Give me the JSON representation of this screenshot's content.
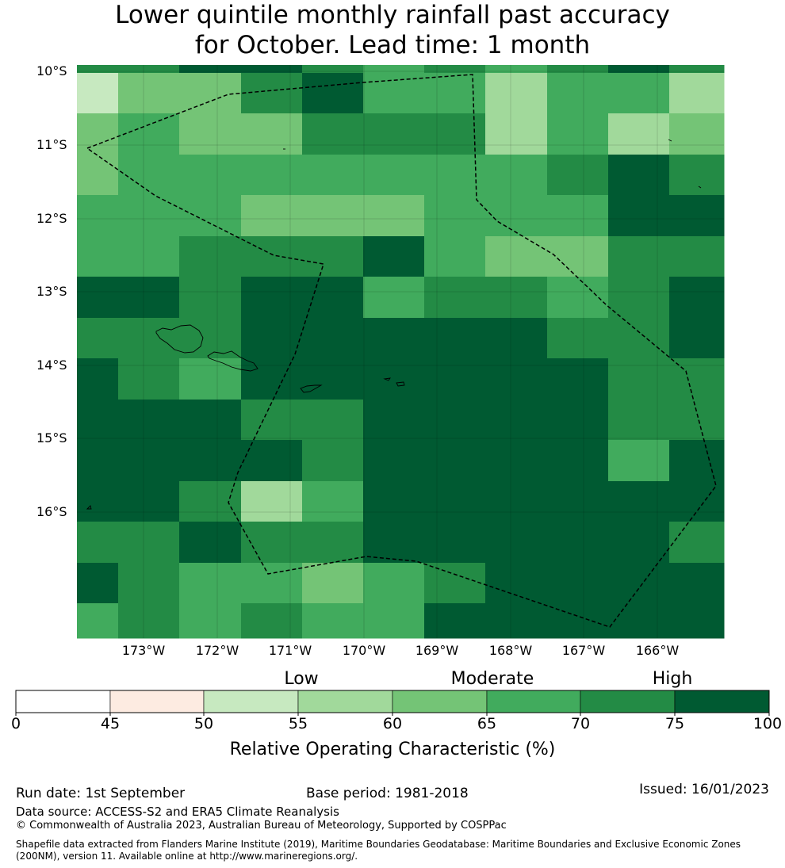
{
  "title": {
    "line1": "Lower quintile monthly rainfall past accuracy",
    "line2": "for October. Lead time: 1 month"
  },
  "map": {
    "lat_labels": [
      "10°S",
      "11°S",
      "12°S",
      "13°S",
      "14°S",
      "15°S",
      "16°S"
    ],
    "lon_labels": [
      "173°W",
      "172°W",
      "171°W",
      "170°W",
      "169°W",
      "168°W",
      "167°W",
      "166°W"
    ],
    "grid_values": [
      [
        72,
        72,
        77,
        77,
        72,
        67,
        72,
        67,
        72,
        77,
        72
      ],
      [
        52,
        62,
        62,
        72,
        77,
        67,
        67,
        57,
        67,
        67,
        57
      ],
      [
        62,
        67,
        62,
        62,
        72,
        72,
        72,
        57,
        67,
        57,
        62
      ],
      [
        62,
        67,
        67,
        67,
        67,
        67,
        67,
        67,
        72,
        77,
        72
      ],
      [
        67,
        67,
        67,
        62,
        62,
        62,
        67,
        67,
        67,
        77,
        77
      ],
      [
        67,
        67,
        72,
        72,
        72,
        77,
        67,
        62,
        62,
        72,
        72
      ],
      [
        77,
        77,
        72,
        77,
        77,
        67,
        72,
        72,
        67,
        72,
        77
      ],
      [
        72,
        72,
        72,
        77,
        77,
        77,
        77,
        77,
        72,
        72,
        77
      ],
      [
        77,
        72,
        67,
        77,
        77,
        77,
        77,
        77,
        77,
        72,
        72
      ],
      [
        77,
        77,
        77,
        72,
        72,
        77,
        77,
        77,
        77,
        72,
        72
      ],
      [
        77,
        77,
        77,
        77,
        72,
        77,
        77,
        77,
        77,
        67,
        77
      ],
      [
        77,
        77,
        72,
        57,
        67,
        77,
        77,
        77,
        77,
        77,
        77
      ],
      [
        72,
        72,
        77,
        72,
        72,
        77,
        77,
        77,
        77,
        77,
        72
      ],
      [
        77,
        72,
        67,
        67,
        62,
        67,
        72,
        77,
        77,
        77,
        77
      ],
      [
        67,
        72,
        67,
        72,
        67,
        67,
        77,
        77,
        77,
        77,
        77
      ]
    ]
  },
  "colorbar": {
    "category_labels": [
      "Low",
      "Moderate",
      "High"
    ],
    "tick_labels": [
      "0",
      "45",
      "50",
      "55",
      "60",
      "65",
      "70",
      "75",
      "100"
    ],
    "colors": [
      "#ffffff",
      "#fdebe1",
      "#c7e9c0",
      "#a1d99b",
      "#74c476",
      "#41ab5d",
      "#238b45",
      "#005a32"
    ],
    "title": "Relative Operating Characteristic (%)"
  },
  "footer": {
    "run_date": "Run date: 1st September",
    "base_period": "Base period: 1981-2018",
    "issued": "Issued: 16/01/2023",
    "data_source": "Data source: ACCESS-S2 and ERA5 Climate Reanalysis",
    "copyright": "© Commonwealth of Australia 2023, Australian Bureau of Meteorology, Supported by COSPPac",
    "shapefile_line1": "Shapefile data extracted from Flanders Marine Institute (2019), Maritime Boundaries Geodatabase: Maritime Boundaries and Exclusive Economic Zones",
    "shapefile_line2": "(200NM), version 11. Available online at http://www.marineregions.org/."
  }
}
